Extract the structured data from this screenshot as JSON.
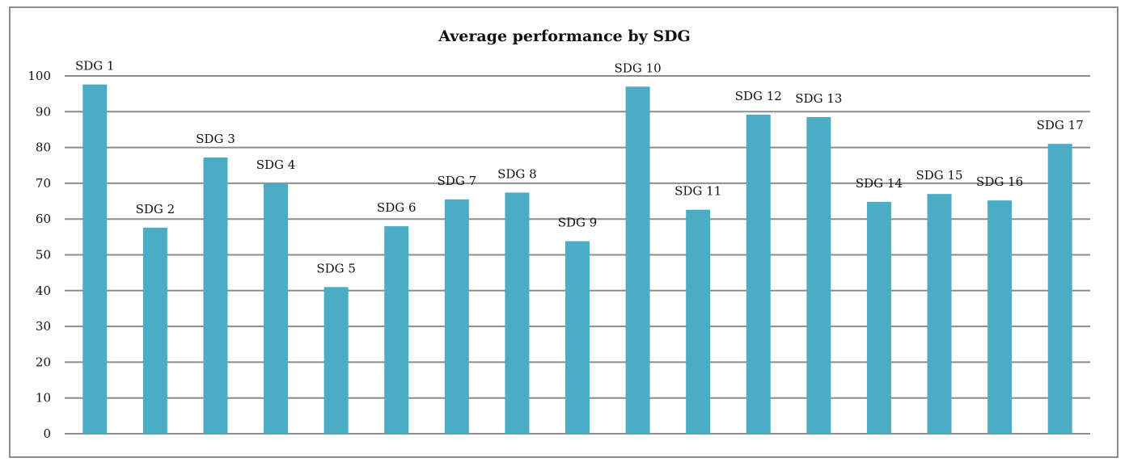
{
  "chart_data": {
    "type": "bar",
    "title": "Average performance by SDG",
    "categories": [
      "SDG 1",
      "SDG 2",
      "SDG 3",
      "SDG 4",
      "SDG 5",
      "SDG 6",
      "SDG 7",
      "SDG 8",
      "SDG 9",
      "SDG 10",
      "SDG 11",
      "SDG 12",
      "SDG 13",
      "SDG 14",
      "SDG 15",
      "SDG 16",
      "SDG 17"
    ],
    "values": [
      97.6,
      57.6,
      77.2,
      70.0,
      41.0,
      58.0,
      65.5,
      67.4,
      53.8,
      97.0,
      62.6,
      89.2,
      88.5,
      64.8,
      67.0,
      65.2,
      81.0
    ],
    "ylim": [
      0,
      100
    ],
    "yticks": [
      "0",
      "10",
      "20",
      "30",
      "40",
      "50",
      "60",
      "70",
      "80",
      "90",
      "100"
    ],
    "xlabel": "",
    "ylabel": "",
    "grid": true,
    "bar_color": "#4bacc6",
    "grid_color": "#8c8c8c"
  }
}
